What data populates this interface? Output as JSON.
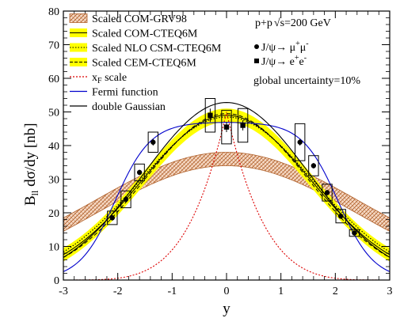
{
  "chart_data": {
    "type": "line",
    "xlabel": "y",
    "ylabel": "B",
    "ylabel_sub": "ll",
    "ylabel_rest": " dσ/dy  [nb]",
    "xlim": [
      -3,
      3
    ],
    "ylim": [
      0,
      80
    ],
    "x_ticks": [
      "-3",
      "-2",
      "-1",
      "0",
      "1",
      "2",
      "3"
    ],
    "y_ticks": [
      "0",
      "10",
      "20",
      "30",
      "40",
      "50",
      "60",
      "70",
      "80"
    ],
    "legend_position": "top-left",
    "legend": [
      {
        "label": "Scaled COM-GRV98",
        "style": "hatched-band",
        "color": "#c87a4a"
      },
      {
        "label": "Scaled COM-CTEQ6M",
        "style": "yellow-band-solid",
        "color": "#ffff00"
      },
      {
        "label": "Scaled NLO CSM-CTEQ6M",
        "style": "yellow-band-dotted",
        "color": "#ffff00"
      },
      {
        "label": "Scaled CEM-CTEQ6M",
        "style": "yellow-band-dashed",
        "color": "#ffff00"
      },
      {
        "label": "x",
        "label_sub": "F",
        "label_rest": " scale",
        "style": "red-dotted",
        "color": "#dd0000"
      },
      {
        "label": "Fermi function",
        "style": "blue-line",
        "color": "#0000cc"
      },
      {
        "label": "double Gaussian",
        "style": "black-line",
        "color": "#000000"
      }
    ],
    "annotations": {
      "collision": "p+p",
      "energy": "√s=200 GeV",
      "decay_mumu": "J/ψ→ μ",
      "decay_mumu_sup1": "+",
      "decay_mumu_mid": "μ",
      "decay_mumu_sup2": "-",
      "decay_ee": "J/ψ→ e",
      "decay_ee_sup1": "+",
      "decay_ee_mid": "e",
      "decay_ee_sup2": "-",
      "global_uncertainty": "global uncertainty=10%"
    },
    "mumu_points": [
      {
        "x": -2.1,
        "y": 18.5,
        "err": 0.8,
        "sys": 2
      },
      {
        "x": -1.85,
        "y": 24,
        "err": 0.8,
        "sys": 2.5
      },
      {
        "x": -1.6,
        "y": 32,
        "err": 0.8,
        "sys": 2.5
      },
      {
        "x": -1.35,
        "y": 41,
        "err": 1,
        "sys": 3
      },
      {
        "x": 1.35,
        "y": 41,
        "err": 1,
        "sys": 5.5
      },
      {
        "x": 1.6,
        "y": 34,
        "err": 0.8,
        "sys": 3
      },
      {
        "x": 1.85,
        "y": 26,
        "err": 0.8,
        "sys": 2.5
      },
      {
        "x": 2.1,
        "y": 19,
        "err": 0.8,
        "sys": 2
      },
      {
        "x": 2.35,
        "y": 14,
        "err": 0.6,
        "sys": 1
      }
    ],
    "ee_points": [
      {
        "x": -0.3,
        "y": 49,
        "err": 2,
        "sys": 5
      },
      {
        "x": 0,
        "y": 45.5,
        "err": 1.5,
        "sys": 5
      },
      {
        "x": 0.3,
        "y": 46,
        "err": 1.5,
        "sys": 5
      }
    ],
    "curves": {
      "com_grv98": {
        "center": 36,
        "sigma": 2.4,
        "half_width": 2
      },
      "com_cteq6m": {
        "center": 49,
        "sigma": 1.55,
        "half_width": 2
      },
      "nlo_csm": {
        "center": 48.5,
        "sigma": 1.6
      },
      "cem": {
        "center": 49.5,
        "sigma": 1.5
      },
      "xf_scale": {
        "center": 50,
        "beam_rapidity": 3.15,
        "power": 4.5
      },
      "fermi": {
        "center": 47,
        "edge": 2.05,
        "width": 0.33
      },
      "double_gaussian": {
        "amplitude": 43,
        "offset": 0.65,
        "sigma": 1.32
      }
    }
  }
}
